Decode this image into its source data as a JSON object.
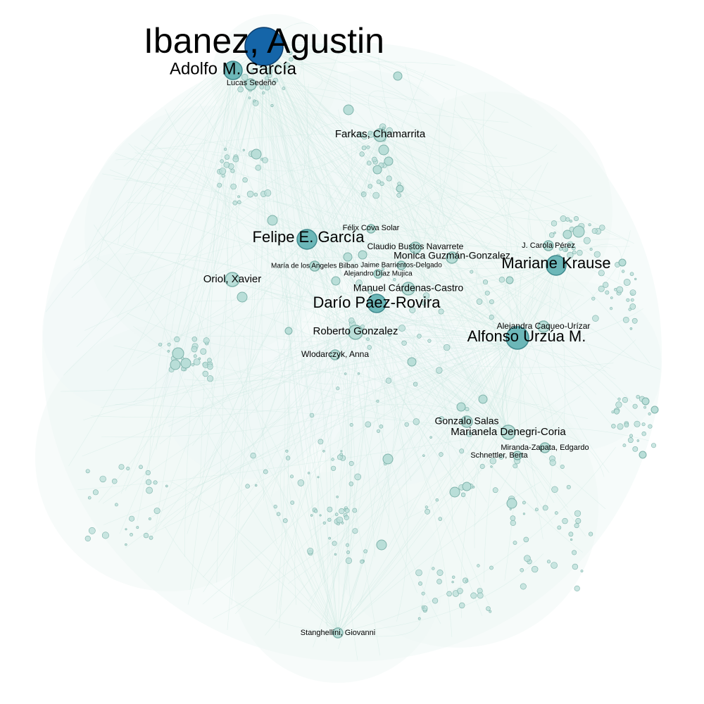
{
  "colors": {
    "background": "#ffffff",
    "edge": "#cfe9e4",
    "cloud": "#eef7f5",
    "node_fill": "#b9ded8",
    "node_stroke": "#7fb3ab",
    "hub_fill": "#6cb7b8",
    "hub_stroke": "#3f8a8e",
    "top_hub_fill": "#1565a8",
    "top_hub_stroke": "#0d3f6e"
  },
  "nodes": [
    {
      "id": "ibanez",
      "label": "Ibanez, Agustin",
      "tier": "top"
    },
    {
      "id": "adolfo",
      "label": "Adolfo M. García",
      "tier": "large"
    },
    {
      "id": "lucas",
      "label": "Lucas Sedeño",
      "tier": "small"
    },
    {
      "id": "farkas",
      "label": "Farkas, Chamarrita",
      "tier": "medium"
    },
    {
      "id": "felix",
      "label": "Félix Cova Solar",
      "tier": "small"
    },
    {
      "id": "felipe",
      "label": "Felipe E. García",
      "tier": "large"
    },
    {
      "id": "claudio",
      "label": "Claudio Bustos Navarrete",
      "tier": "medium"
    },
    {
      "id": "monica",
      "label": "Monica Guzmán-Gonzalez",
      "tier": "medium"
    },
    {
      "id": "jcarola",
      "label": "J. Carola Pérez",
      "tier": "small"
    },
    {
      "id": "mariane",
      "label": "Mariane Krause",
      "tier": "large"
    },
    {
      "id": "maria",
      "label": "María de los Angeles Bilbao",
      "tier": "small"
    },
    {
      "id": "jaime",
      "label": "Jaime Barrientos-Delgado",
      "tier": "small"
    },
    {
      "id": "alejandro",
      "label": "Alejandro Díaz Mujica",
      "tier": "small"
    },
    {
      "id": "oriol",
      "label": "Oriol, Xavier",
      "tier": "medium"
    },
    {
      "id": "manuel",
      "label": "Manuel Cárdenas-Castro",
      "tier": "medium"
    },
    {
      "id": "dario",
      "label": "Darío Páez-Rovira",
      "tier": "large"
    },
    {
      "id": "alejandra",
      "label": "Alejandra Caqueo-Urízar",
      "tier": "medium"
    },
    {
      "id": "roberto",
      "label": "Roberto Gonzalez",
      "tier": "medium"
    },
    {
      "id": "alfonso",
      "label": "Alfonso Urzúa M.",
      "tier": "large"
    },
    {
      "id": "wlodarczyk",
      "label": "Wlodarczyk, Anna",
      "tier": "small"
    },
    {
      "id": "gonzalo",
      "label": "Gonzalo Salas",
      "tier": "medium"
    },
    {
      "id": "marianela",
      "label": "Marianela Denegri-Coria",
      "tier": "medium"
    },
    {
      "id": "miranda",
      "label": "Miranda-Zapata, Edgardo",
      "tier": "small"
    },
    {
      "id": "schnettler",
      "label": "Schnettler, Berta",
      "tier": "small"
    },
    {
      "id": "stanghellini",
      "label": "Stanghellini, Giovanni",
      "tier": "small"
    }
  ]
}
